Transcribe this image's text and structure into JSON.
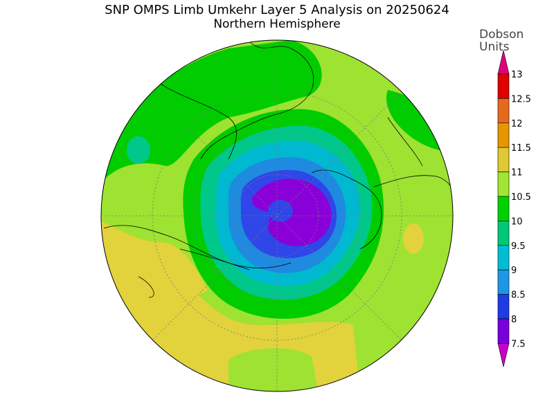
{
  "title": "SNP OMPS Limb Umkehr Layer 5 Analysis on 20250624",
  "subtitle": "Northern Hemisphere",
  "colorbar": {
    "unit_line1": "Dobson",
    "unit_line2": "Units",
    "ticks": [
      "13",
      "12.5",
      "12",
      "11.5",
      "11",
      "10.5",
      "10",
      "9.5",
      "9",
      "8.5",
      "8",
      "7.5"
    ],
    "colors": [
      "#e0007e",
      "#e00000",
      "#e66a1e",
      "#e69600",
      "#e0c832",
      "#a0e632",
      "#00d200",
      "#00c878",
      "#00bed2",
      "#1e96e6",
      "#1e3ce6",
      "#7800dc",
      "#c800c8"
    ]
  },
  "legend_colors": {
    "c7": "#8a00d8",
    "c8": "#3046e8",
    "c85": "#1e8ae0",
    "c9": "#00b8d0",
    "c95": "#00c88a",
    "c10": "#00cc00",
    "c105": "#9ee232",
    "c11": "#e2d23c"
  }
}
